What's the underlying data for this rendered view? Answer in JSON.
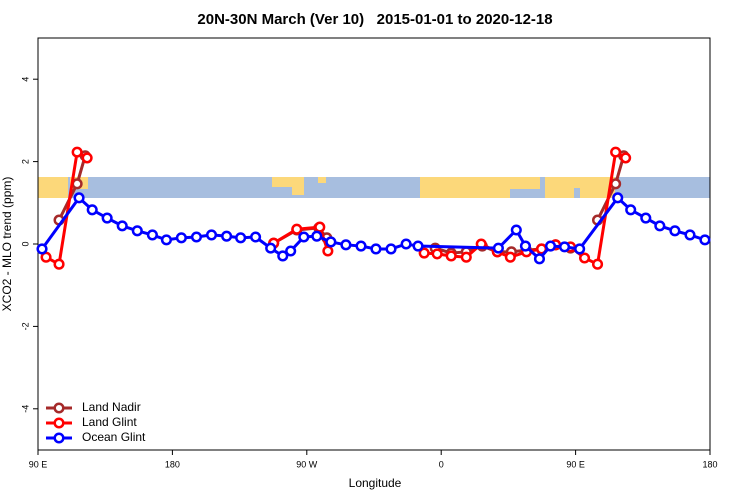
{
  "chart_data": {
    "type": "line",
    "title": "20N-30N March (Ver 10)   2015-01-01 to 2020-12-18",
    "xlabel": "Longitude",
    "ylabel": "XCO2 - MLO trend (ppm)",
    "xlim": [
      90,
      540
    ],
    "ylim": [
      -5,
      5
    ],
    "xticks": [
      {
        "value": 90,
        "label": "90 E"
      },
      180,
      {
        "value": 270,
        "label": "90 W"
      },
      {
        "value": 360,
        "label": "0"
      },
      {
        "value": 450,
        "label": "90 E"
      },
      {
        "value": 540,
        "label": "180"
      }
    ],
    "yticks": [
      -4,
      -2,
      0,
      2,
      4
    ],
    "legend": "bottom-left",
    "series": [
      {
        "name": "Land Nadir",
        "color": "#a52a2a",
        "x": [
          104.1,
          116.2,
          121.6,
          null,
          247.8,
          263.3,
          278,
          283.4,
          null,
          356,
          366.7,
          376.8,
          387.5,
          397.6,
          407,
          417.1,
          427.2,
          436.6,
          446.6,
          null,
          464.7,
          476.8,
          482.2
        ],
        "values": [
          0.58,
          1.46,
          2.14,
          null,
          0.02,
          0.34,
          0.39,
          0.15,
          null,
          -0.1,
          -0.22,
          -0.19,
          -0.05,
          -0.19,
          -0.19,
          -0.15,
          -0.12,
          -0.02,
          -0.1,
          null,
          0.58,
          1.46,
          2.14
        ]
      },
      {
        "name": "Land Glint",
        "color": "#ff0000",
        "x": [
          95.4,
          104.1,
          116.2,
          122.9,
          null,
          247.8,
          263.3,
          278.7,
          284.1,
          null,
          348.6,
          357.3,
          366.7,
          376.8,
          386.8,
          397.6,
          406.3,
          417.1,
          427.2,
          436.6,
          446.6,
          456,
          464.7,
          476.8,
          483.5
        ],
        "values": [
          -0.32,
          -0.49,
          2.23,
          2.09,
          null,
          0.02,
          0.36,
          0.41,
          -0.17,
          null,
          -0.22,
          -0.24,
          -0.29,
          -0.32,
          0,
          -0.19,
          -0.32,
          -0.19,
          -0.12,
          -0.02,
          -0.07,
          -0.34,
          -0.49,
          2.23,
          2.09
        ]
      },
      {
        "name": "Ocean Glint",
        "color": "#0000ff",
        "x": [
          92.7,
          117.5,
          126.3,
          136.3,
          146.4,
          156.5,
          166.6,
          176,
          186,
          196.1,
          206.2,
          216.3,
          225.7,
          235.7,
          245.8,
          253.9,
          259.2,
          268,
          276.7,
          286.1,
          296.2,
          306.3,
          316.3,
          326.4,
          336.5,
          344.5,
          398.3,
          410.3,
          416.4,
          425.8,
          433.2,
          442.6,
          452.7,
          478.2,
          486.9,
          497,
          506.4,
          516.5,
          526.6,
          536.6
        ],
        "values": [
          -0.12,
          1.12,
          0.83,
          0.63,
          0.44,
          0.32,
          0.22,
          0.1,
          0.15,
          0.17,
          0.22,
          0.19,
          0.15,
          0.17,
          -0.1,
          -0.29,
          -0.17,
          0.17,
          0.19,
          0.05,
          -0.02,
          -0.05,
          -0.12,
          -0.12,
          0,
          -0.05,
          -0.1,
          0.34,
          -0.05,
          -0.36,
          -0.05,
          -0.07,
          -0.12,
          1.12,
          0.83,
          0.63,
          0.44,
          0.32,
          0.22,
          0.1
        ]
      }
    ]
  }
}
